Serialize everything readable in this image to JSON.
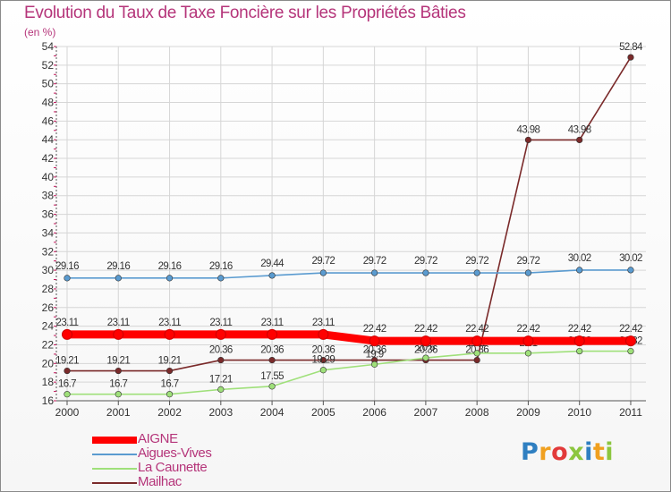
{
  "title": "Evolution du Taux de Taxe Foncière sur les Propriétés Bâties",
  "subtitle": "(en %)",
  "logo": {
    "letters": [
      "P",
      "r",
      "o",
      "x",
      "i",
      "t",
      "i"
    ],
    "colors": [
      "#2f7fc1",
      "#f0a020",
      "#e23a3a",
      "#8cc63f",
      "#2f7fc1",
      "#f0a020",
      "#8cc63f"
    ]
  },
  "chart_data": {
    "type": "line",
    "title": "Evolution du Taux de Taxe Foncière sur les Propriétés Bâties",
    "ylabel": "(en %)",
    "xlabel": "",
    "ylim": [
      16,
      54
    ],
    "yticks": [
      16,
      18,
      20,
      22,
      24,
      26,
      28,
      30,
      32,
      34,
      36,
      38,
      40,
      42,
      44,
      46,
      48,
      50,
      52,
      54
    ],
    "grid": true,
    "legend_position": "bottom-left",
    "categories": [
      "2000",
      "2001",
      "2002",
      "2003",
      "2004",
      "2005",
      "2006",
      "2007",
      "2008",
      "2009",
      "2010",
      "2011"
    ],
    "series": [
      {
        "name": "Mailhac",
        "color": "#7a2a2a",
        "values": [
          19.21,
          19.21,
          19.21,
          20.36,
          20.36,
          20.36,
          20.36,
          20.36,
          20.36,
          43.98,
          43.98,
          52.84
        ],
        "labels": [
          "19.21",
          "19.21",
          "19.21",
          "20.36",
          "20.36",
          "20.36",
          "20.36",
          "20.36",
          "20.36",
          "43.98",
          "43.98",
          "52.84"
        ]
      },
      {
        "name": "La Caunette",
        "color": "#9fe07a",
        "values": [
          16.7,
          16.7,
          16.7,
          17.21,
          17.55,
          19.29,
          19.9,
          20.6,
          21.1,
          21.1,
          21.32,
          21.32
        ],
        "labels": [
          "16.7",
          "16.7",
          "16.7",
          "17.21",
          "17.55",
          "19.29",
          "19.9",
          "20.6",
          "21.1",
          "21.1",
          "21.32",
          "21.32"
        ]
      },
      {
        "name": "Aigues-Vives",
        "color": "#5a9bd0",
        "values": [
          29.16,
          29.16,
          29.16,
          29.16,
          29.44,
          29.72,
          29.72,
          29.72,
          29.72,
          29.72,
          30.02,
          30.02
        ],
        "labels": [
          "29.16",
          "29.16",
          "29.16",
          "29.16",
          "29.44",
          "29.72",
          "29.72",
          "29.72",
          "29.72",
          "29.72",
          "30.02",
          "30.02"
        ]
      },
      {
        "name": "AIGNE",
        "color": "#ff0000",
        "values": [
          23.11,
          23.11,
          23.11,
          23.11,
          23.11,
          23.11,
          22.42,
          22.42,
          22.42,
          22.42,
          22.42,
          22.42
        ],
        "labels": [
          "23.11",
          "23.11",
          "23.11",
          "23.11",
          "23.11",
          "23.11",
          "22.42",
          "22.42",
          "22.42",
          "22.42",
          "22.42",
          "22.42"
        ]
      }
    ],
    "legend": [
      {
        "name": "AIGNE",
        "color": "#ff0000"
      },
      {
        "name": "Aigues-Vives",
        "color": "#5a9bd0"
      },
      {
        "name": "La Caunette",
        "color": "#9fe07a"
      },
      {
        "name": "Mailhac",
        "color": "#7a2a2a"
      }
    ]
  }
}
